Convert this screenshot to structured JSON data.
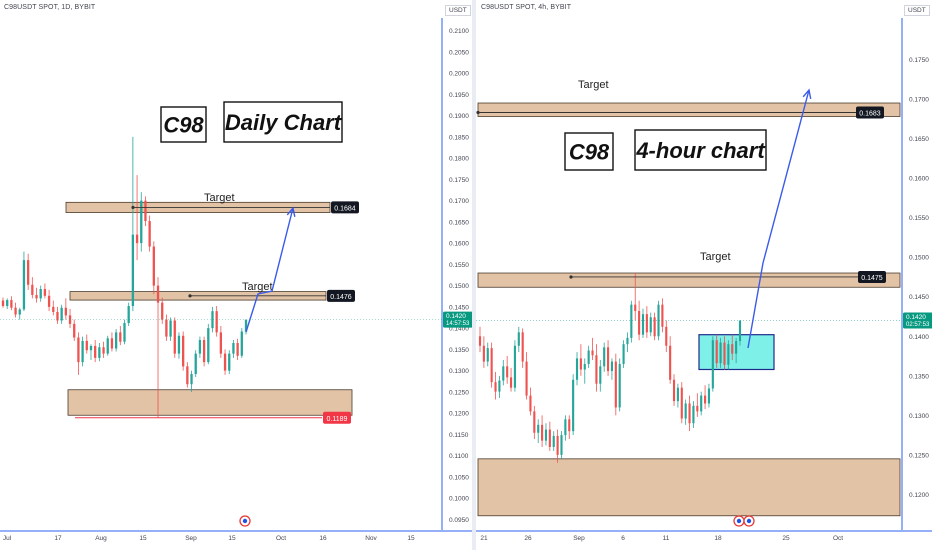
{
  "colors": {
    "up": "#26a69a",
    "down": "#ef5350",
    "zone_fill": "#ddb997",
    "zone_stroke": "#4a3a2a",
    "arrow": "#3a5bea",
    "box_fill": "#7ff0e8",
    "box_stroke": "#1e2a8a",
    "axis_line": "#2d5ff3",
    "last_price": "#089981",
    "red_label": "#f23645",
    "black_label": "#131722"
  },
  "icons": [
    "earnings-icon",
    "dividends-icon"
  ],
  "chart_data": [
    {
      "type": "candlestick",
      "header": "C98USDT SPOT, 1D, BYBIT",
      "currency": "USDT",
      "title_label": "C98",
      "subtitle_label": "Daily Chart",
      "y_ticks": [
        "0.2100",
        "0.2050",
        "0.2000",
        "0.1950",
        "0.1900",
        "0.1850",
        "0.1800",
        "0.1750",
        "0.1700",
        "0.1650",
        "0.1600",
        "0.1550",
        "0.1500",
        "0.1450",
        "0.1400",
        "0.1350",
        "0.1300",
        "0.1250",
        "0.1200",
        "0.1150",
        "0.1100",
        "0.1050",
        "0.1000",
        "0.0950"
      ],
      "x_ticks": [
        "Jul",
        "17",
        "Aug",
        "15",
        "Sep",
        "15",
        "Oct",
        "16",
        "Nov",
        "15"
      ],
      "ylim": [
        0.0925,
        0.2125
      ],
      "last_price": "0.1420",
      "countdown": "14:57:53",
      "levels": [
        {
          "label": "Target",
          "price": "0.1684"
        },
        {
          "label": "Target",
          "price": "0.1476"
        },
        {
          "label": "",
          "price": "0.1189"
        }
      ],
      "support_zone": [
        0.1195,
        0.1255
      ],
      "candles": [
        [
          0.1465,
          0.1472,
          0.1448,
          0.1452
        ],
        [
          0.1452,
          0.147,
          0.1445,
          0.1466
        ],
        [
          0.1466,
          0.1475,
          0.1442,
          0.1448
        ],
        [
          0.1448,
          0.146,
          0.1425,
          0.1432
        ],
        [
          0.1432,
          0.1448,
          0.142,
          0.1444
        ],
        [
          0.1444,
          0.158,
          0.144,
          0.156
        ],
        [
          0.156,
          0.1575,
          0.149,
          0.1502
        ],
        [
          0.1502,
          0.152,
          0.147,
          0.1478
        ],
        [
          0.1478,
          0.1495,
          0.146,
          0.147
        ],
        [
          0.147,
          0.15,
          0.1462,
          0.1492
        ],
        [
          0.1492,
          0.1505,
          0.147,
          0.1476
        ],
        [
          0.1476,
          0.149,
          0.144,
          0.145
        ],
        [
          0.145,
          0.1465,
          0.143,
          0.1438
        ],
        [
          0.1438,
          0.145,
          0.141,
          0.1418
        ],
        [
          0.1418,
          0.1455,
          0.141,
          0.1448
        ],
        [
          0.1448,
          0.147,
          0.142,
          0.143
        ],
        [
          0.143,
          0.1445,
          0.14,
          0.141
        ],
        [
          0.141,
          0.142,
          0.137,
          0.1378
        ],
        [
          0.1378,
          0.139,
          0.129,
          0.132
        ],
        [
          0.132,
          0.138,
          0.131,
          0.137
        ],
        [
          0.137,
          0.1385,
          0.134,
          0.1348
        ],
        [
          0.1348,
          0.1362,
          0.1325,
          0.1358
        ],
        [
          0.1358,
          0.1372,
          0.132,
          0.133
        ],
        [
          0.133,
          0.1365,
          0.1322,
          0.1355
        ],
        [
          0.1355,
          0.1368,
          0.133,
          0.134
        ],
        [
          0.134,
          0.1382,
          0.1335,
          0.1376
        ],
        [
          0.1376,
          0.139,
          0.1345,
          0.1352
        ],
        [
          0.1352,
          0.1398,
          0.1345,
          0.139
        ],
        [
          0.139,
          0.1405,
          0.136,
          0.1368
        ],
        [
          0.1368,
          0.142,
          0.1362,
          0.1412
        ],
        [
          0.1412,
          0.146,
          0.1405,
          0.1452
        ],
        [
          0.1452,
          0.185,
          0.144,
          0.162
        ],
        [
          0.162,
          0.176,
          0.156,
          0.16
        ],
        [
          0.16,
          0.172,
          0.158,
          0.17
        ],
        [
          0.17,
          0.171,
          0.164,
          0.1652
        ],
        [
          0.1652,
          0.1665,
          0.158,
          0.1592
        ],
        [
          0.1592,
          0.1604,
          0.148,
          0.15
        ],
        [
          0.15,
          0.152,
          0.119,
          0.146
        ],
        [
          0.146,
          0.1472,
          0.141,
          0.142
        ],
        [
          0.142,
          0.1432,
          0.137,
          0.138
        ],
        [
          0.138,
          0.1425,
          0.137,
          0.1418
        ],
        [
          0.1418,
          0.1425,
          0.133,
          0.134
        ],
        [
          0.134,
          0.139,
          0.1328,
          0.1382
        ],
        [
          0.1382,
          0.1392,
          0.13,
          0.131
        ],
        [
          0.131,
          0.132,
          0.126,
          0.1268
        ],
        [
          0.1268,
          0.13,
          0.125,
          0.1292
        ],
        [
          0.1292,
          0.1348,
          0.1285,
          0.134
        ],
        [
          0.134,
          0.138,
          0.133,
          0.1372
        ],
        [
          0.1372,
          0.138,
          0.131,
          0.132
        ],
        [
          0.132,
          0.141,
          0.1315,
          0.14
        ],
        [
          0.14,
          0.145,
          0.139,
          0.144
        ],
        [
          0.144,
          0.1452,
          0.138,
          0.139
        ],
        [
          0.139,
          0.1405,
          0.133,
          0.134
        ],
        [
          0.134,
          0.135,
          0.129,
          0.13
        ],
        [
          0.13,
          0.1348,
          0.1292,
          0.134
        ],
        [
          0.134,
          0.1372,
          0.133,
          0.1365
        ],
        [
          0.1365,
          0.1375,
          0.1325,
          0.1335
        ],
        [
          0.1335,
          0.14,
          0.133,
          0.1392
        ],
        [
          0.1392,
          0.1415,
          0.1385,
          0.142
        ]
      ]
    },
    {
      "type": "candlestick",
      "header": "C98USDT SPOT, 4h, BYBIT",
      "currency": "USDT",
      "title_label": "C98",
      "subtitle_label": "4-hour chart",
      "y_ticks": [
        "0.1750",
        "0.1700",
        "0.1650",
        "0.1600",
        "0.1550",
        "0.1500",
        "0.1450",
        "0.1400",
        "0.1350",
        "0.1300",
        "0.1250",
        "0.1200"
      ],
      "x_ticks": [
        "21",
        "26",
        "Sep",
        "6",
        "11",
        "18",
        "25",
        "Oct"
      ],
      "ylim": [
        0.1155,
        0.18
      ],
      "last_price": "0.1420",
      "countdown": "02:57:53",
      "levels": [
        {
          "label": "Target",
          "price": "0.1683"
        },
        {
          "label": "Target",
          "price": "0.1475"
        }
      ],
      "support_zone": [
        0.1173,
        0.1245
      ],
      "consolidation_box": [
        0.1358,
        0.1402
      ],
      "candles": [
        [
          0.14,
          0.1412,
          0.138,
          0.1388
        ],
        [
          0.1388,
          0.14,
          0.136,
          0.1368
        ],
        [
          0.1368,
          0.1392,
          0.1362,
          0.1385
        ],
        [
          0.1385,
          0.1392,
          0.1335,
          0.1342
        ],
        [
          0.1342,
          0.1355,
          0.132,
          0.133
        ],
        [
          0.133,
          0.135,
          0.1322,
          0.1344
        ],
        [
          0.1344,
          0.137,
          0.1338,
          0.1362
        ],
        [
          0.1362,
          0.1375,
          0.134,
          0.1348
        ],
        [
          0.1348,
          0.136,
          0.133,
          0.1335
        ],
        [
          0.1335,
          0.1395,
          0.133,
          0.1388
        ],
        [
          0.1388,
          0.1412,
          0.138,
          0.1405
        ],
        [
          0.1405,
          0.141,
          0.136,
          0.1368
        ],
        [
          0.1368,
          0.138,
          0.132,
          0.1325
        ],
        [
          0.1325,
          0.1335,
          0.13,
          0.1305
        ],
        [
          0.1305,
          0.1312,
          0.127,
          0.1278
        ],
        [
          0.1278,
          0.1295,
          0.1265,
          0.1288
        ],
        [
          0.1288,
          0.13,
          0.126,
          0.1268
        ],
        [
          0.1268,
          0.129,
          0.1262,
          0.1282
        ],
        [
          0.1282,
          0.1292,
          0.1255,
          0.126
        ],
        [
          0.126,
          0.128,
          0.1255,
          0.1274
        ],
        [
          0.1274,
          0.1282,
          0.124,
          0.125
        ],
        [
          0.125,
          0.128,
          0.1245,
          0.1275
        ],
        [
          0.1275,
          0.13,
          0.1268,
          0.1295
        ],
        [
          0.1295,
          0.13,
          0.127,
          0.128
        ],
        [
          0.128,
          0.1352,
          0.1275,
          0.1345
        ],
        [
          0.1345,
          0.138,
          0.1338,
          0.1372
        ],
        [
          0.1372,
          0.139,
          0.135,
          0.1358
        ],
        [
          0.1358,
          0.1372,
          0.134,
          0.1365
        ],
        [
          0.1365,
          0.1388,
          0.136,
          0.1382
        ],
        [
          0.1382,
          0.1398,
          0.137,
          0.1376
        ],
        [
          0.1376,
          0.139,
          0.133,
          0.134
        ],
        [
          0.134,
          0.137,
          0.133,
          0.1362
        ],
        [
          0.1362,
          0.1392,
          0.1355,
          0.1386
        ],
        [
          0.1386,
          0.1395,
          0.135,
          0.1356
        ],
        [
          0.1356,
          0.1372,
          0.1345,
          0.1368
        ],
        [
          0.1368,
          0.1378,
          0.13,
          0.131
        ],
        [
          0.131,
          0.1372,
          0.1305,
          0.1365
        ],
        [
          0.1365,
          0.1395,
          0.136,
          0.139
        ],
        [
          0.139,
          0.1405,
          0.138,
          0.1398
        ],
        [
          0.1398,
          0.1445,
          0.1392,
          0.144
        ],
        [
          0.144,
          0.148,
          0.142,
          0.1432
        ],
        [
          0.1432,
          0.1445,
          0.1395,
          0.1402
        ],
        [
          0.1402,
          0.1435,
          0.1398,
          0.1428
        ],
        [
          0.1428,
          0.1438,
          0.1398,
          0.1405
        ],
        [
          0.1405,
          0.143,
          0.14,
          0.1424
        ],
        [
          0.1424,
          0.143,
          0.1395,
          0.14
        ],
        [
          0.14,
          0.1445,
          0.1395,
          0.144
        ],
        [
          0.144,
          0.1448,
          0.1405,
          0.1412
        ],
        [
          0.1412,
          0.142,
          0.138,
          0.1388
        ],
        [
          0.1388,
          0.14,
          0.134,
          0.1345
        ],
        [
          0.1345,
          0.1352,
          0.1312,
          0.1318
        ],
        [
          0.1318,
          0.134,
          0.131,
          0.1335
        ],
        [
          0.1335,
          0.1342,
          0.129,
          0.1296
        ],
        [
          0.1296,
          0.132,
          0.1288,
          0.1315
        ],
        [
          0.1315,
          0.1325,
          0.128,
          0.129
        ],
        [
          0.129,
          0.1318,
          0.1284,
          0.1312
        ],
        [
          0.1312,
          0.1328,
          0.1298,
          0.1305
        ],
        [
          0.1305,
          0.133,
          0.13,
          0.1325
        ],
        [
          0.1325,
          0.1338,
          0.1308,
          0.1315
        ],
        [
          0.1315,
          0.134,
          0.131,
          0.1334
        ],
        [
          0.1334,
          0.14,
          0.133,
          0.1395
        ],
        [
          0.1395,
          0.1402,
          0.136,
          0.1366
        ],
        [
          0.1366,
          0.1398,
          0.136,
          0.1392
        ],
        [
          0.1392,
          0.14,
          0.1358,
          0.1364
        ],
        [
          0.1364,
          0.1395,
          0.1358,
          0.139
        ],
        [
          0.139,
          0.1402,
          0.137,
          0.1378
        ],
        [
          0.1378,
          0.1398,
          0.1366,
          0.1394
        ],
        [
          0.1394,
          0.142,
          0.1388,
          0.142
        ]
      ]
    }
  ]
}
